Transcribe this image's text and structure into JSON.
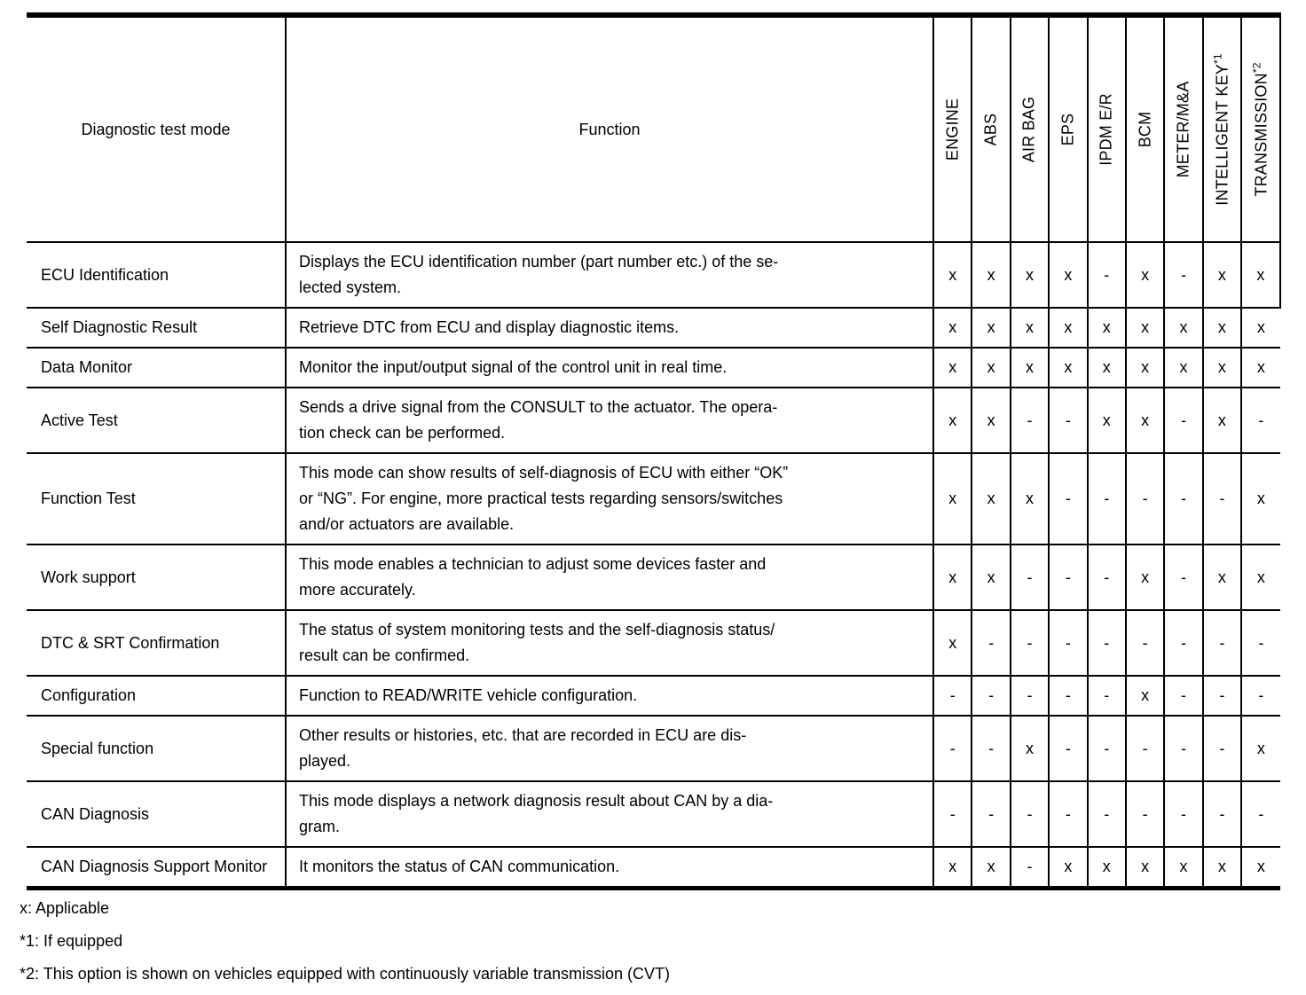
{
  "table": {
    "header": {
      "diagnostic_test_mode": "Diagnostic test mode",
      "function": "Function",
      "systems": [
        {
          "label": "ENGINE",
          "sup": ""
        },
        {
          "label": "ABS",
          "sup": ""
        },
        {
          "label": "AIR BAG",
          "sup": ""
        },
        {
          "label": "EPS",
          "sup": ""
        },
        {
          "label": "IPDM E/R",
          "sup": ""
        },
        {
          "label": "BCM",
          "sup": ""
        },
        {
          "label": "METER/M&A",
          "sup": ""
        },
        {
          "label": "INTELLIGENT KEY",
          "sup": "*1"
        },
        {
          "label": "TRANSMISSION",
          "sup": "*2"
        }
      ]
    },
    "rows": [
      {
        "mode": "ECU Identification",
        "function_lines": [
          "Displays the ECU identification number (part number etc.) of the se-",
          "lected system."
        ],
        "marks": [
          "x",
          "x",
          "x",
          "x",
          "-",
          "x",
          "-",
          "x",
          "x"
        ]
      },
      {
        "mode": "Self Diagnostic Result",
        "function_lines": [
          "Retrieve DTC from ECU and display diagnostic items."
        ],
        "marks": [
          "x",
          "x",
          "x",
          "x",
          "x",
          "x",
          "x",
          "x",
          "x"
        ]
      },
      {
        "mode": "Data Monitor",
        "function_lines": [
          "Monitor the input/output signal of the control unit in real time."
        ],
        "marks": [
          "x",
          "x",
          "x",
          "x",
          "x",
          "x",
          "x",
          "x",
          "x"
        ]
      },
      {
        "mode": "Active Test",
        "function_lines": [
          "Sends a drive signal from the CONSULT to the actuator. The opera-",
          "tion check can be performed."
        ],
        "marks": [
          "x",
          "x",
          "-",
          "-",
          "x",
          "x",
          "-",
          "x",
          "-"
        ]
      },
      {
        "mode": "Function Test",
        "function_lines": [
          "This mode can show results of self-diagnosis of ECU with either “OK”",
          "or “NG”. For engine, more practical tests regarding sensors/switches",
          "and/or actuators are available."
        ],
        "marks": [
          "x",
          "x",
          "x",
          "-",
          "-",
          "-",
          "-",
          "-",
          "x"
        ]
      },
      {
        "mode": "Work support",
        "function_lines": [
          "This mode enables a technician to adjust some devices faster and",
          "more accurately."
        ],
        "marks": [
          "x",
          "x",
          "-",
          "-",
          "-",
          "x",
          "-",
          "x",
          "x"
        ]
      },
      {
        "mode": "DTC & SRT Confirmation",
        "function_lines": [
          "The status of system monitoring tests and the self-diagnosis status/",
          "result can be confirmed."
        ],
        "marks": [
          "x",
          "-",
          "-",
          "-",
          "-",
          "-",
          "-",
          "-",
          "-"
        ]
      },
      {
        "mode": "Configuration",
        "function_lines": [
          "Function to READ/WRITE vehicle configuration."
        ],
        "marks": [
          "-",
          "-",
          "-",
          "-",
          "-",
          "x",
          "-",
          "-",
          "-"
        ]
      },
      {
        "mode": "Special function",
        "function_lines": [
          "Other results or histories, etc. that are recorded in ECU are dis-",
          "played."
        ],
        "marks": [
          "-",
          "-",
          "x",
          "-",
          "-",
          "-",
          "-",
          "-",
          "x"
        ]
      },
      {
        "mode": "CAN Diagnosis",
        "function_lines": [
          "This mode displays a network diagnosis result about CAN by a dia-",
          "gram."
        ],
        "marks": [
          "-",
          "-",
          "-",
          "-",
          "-",
          "-",
          "-",
          "-",
          "-"
        ]
      },
      {
        "mode": "CAN Diagnosis Support Monitor",
        "function_lines": [
          "It monitors the status of CAN communication."
        ],
        "marks": [
          "x",
          "x",
          "-",
          "x",
          "x",
          "x",
          "x",
          "x",
          "x"
        ]
      }
    ]
  },
  "notes": [
    "x: Applicable",
    "*1: If equipped",
    "*2: This option is shown on vehicles equipped with continuously variable transmission (CVT)"
  ]
}
